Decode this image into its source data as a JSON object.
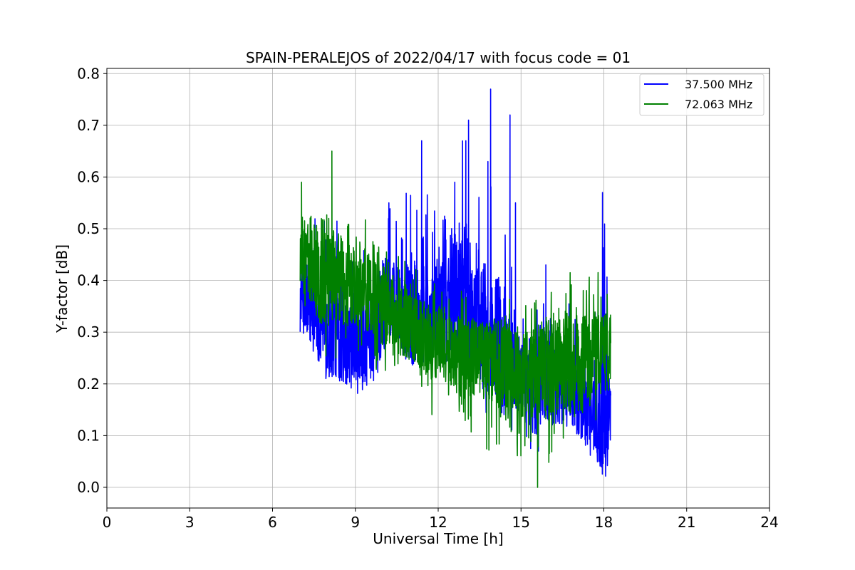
{
  "chart_data": {
    "type": "line",
    "title": "SPAIN-PERALEJOS of 2022/04/17 with focus code = 01",
    "xlabel": "Universal Time [h]",
    "ylabel": "Y-factor [dB]",
    "xlim": [
      0,
      24
    ],
    "ylim": [
      -0.04,
      0.81
    ],
    "xticks": [
      0,
      3,
      6,
      9,
      12,
      15,
      18,
      21,
      24
    ],
    "xtick_labels": [
      "0",
      "3",
      "6",
      "9",
      "12",
      "15",
      "18",
      "21",
      "24"
    ],
    "yticks": [
      0.0,
      0.1,
      0.2,
      0.3,
      0.4,
      0.5,
      0.6,
      0.7,
      0.8
    ],
    "ytick_labels": [
      "0.0",
      "0.1",
      "0.2",
      "0.3",
      "0.4",
      "0.5",
      "0.6",
      "0.7",
      "0.8"
    ],
    "grid": true,
    "legend_position": "top-right",
    "series": [
      {
        "name": "37.500 MHz",
        "color": "#0000ff",
        "x": [
          7.0,
          7.25,
          7.5,
          7.75,
          8.0,
          8.25,
          8.5,
          8.75,
          9.0,
          9.25,
          9.5,
          9.75,
          10.0,
          10.25,
          10.5,
          10.75,
          11.0,
          11.25,
          11.5,
          11.75,
          12.0,
          12.25,
          12.5,
          12.75,
          13.0,
          13.25,
          13.5,
          13.75,
          14.0,
          14.25,
          14.5,
          14.75,
          15.0,
          15.25,
          15.5,
          15.75,
          16.0,
          16.25,
          16.5,
          16.75,
          17.0,
          17.25,
          17.5,
          17.75,
          18.0,
          18.25
        ],
        "mean": [
          0.37,
          0.36,
          0.34,
          0.32,
          0.3,
          0.31,
          0.29,
          0.27,
          0.28,
          0.27,
          0.29,
          0.3,
          0.35,
          0.37,
          0.36,
          0.34,
          0.35,
          0.33,
          0.34,
          0.32,
          0.38,
          0.39,
          0.38,
          0.36,
          0.38,
          0.33,
          0.32,
          0.3,
          0.3,
          0.27,
          0.25,
          0.23,
          0.22,
          0.21,
          0.2,
          0.22,
          0.21,
          0.2,
          0.19,
          0.18,
          0.18,
          0.17,
          0.16,
          0.15,
          0.15,
          0.14
        ],
        "min": [
          0.3,
          0.25,
          0.25,
          0.24,
          0.2,
          0.17,
          0.21,
          0.2,
          0.17,
          0.17,
          0.16,
          0.2,
          0.22,
          0.28,
          0.27,
          0.25,
          0.24,
          0.24,
          0.23,
          0.24,
          0.22,
          0.22,
          0.22,
          0.21,
          0.21,
          0.2,
          0.18,
          0.17,
          0.15,
          0.14,
          0.1,
          0.08,
          0.06,
          0.05,
          0.04,
          0.06,
          0.07,
          0.07,
          0.09,
          0.08,
          0.07,
          0.06,
          0.03,
          0.04,
          0.06,
          0.03
        ],
        "max": [
          0.5,
          0.55,
          0.55,
          0.54,
          0.57,
          0.55,
          0.52,
          0.48,
          0.44,
          0.47,
          0.5,
          0.54,
          0.56,
          0.55,
          0.52,
          0.56,
          0.67,
          0.57,
          0.62,
          0.5,
          0.59,
          0.62,
          0.66,
          0.63,
          0.71,
          0.62,
          0.56,
          0.77,
          0.48,
          0.72,
          0.55,
          0.38,
          0.33,
          0.34,
          0.43,
          0.42,
          0.38,
          0.35,
          0.35,
          0.37,
          0.35,
          0.35,
          0.33,
          0.35,
          0.57,
          0.37
        ],
        "spikes": [
          [
            11.4,
            0.67
          ],
          [
            12.6,
            0.59
          ],
          [
            13.0,
            0.67
          ],
          [
            13.1,
            0.71
          ],
          [
            13.8,
            0.63
          ],
          [
            13.9,
            0.77
          ],
          [
            14.6,
            0.72
          ],
          [
            14.8,
            0.55
          ],
          [
            15.9,
            0.43
          ],
          [
            17.95,
            0.57
          ]
        ]
      },
      {
        "name": "72.063 MHz",
        "color": "#008000",
        "x": [
          7.0,
          7.25,
          7.5,
          7.75,
          8.0,
          8.25,
          8.5,
          8.75,
          9.0,
          9.25,
          9.5,
          9.75,
          10.0,
          10.25,
          10.5,
          10.75,
          11.0,
          11.25,
          11.5,
          11.75,
          12.0,
          12.25,
          12.5,
          12.75,
          13.0,
          13.25,
          13.5,
          13.75,
          14.0,
          14.25,
          14.5,
          14.75,
          15.0,
          15.25,
          15.5,
          15.75,
          16.0,
          16.25,
          16.5,
          16.75,
          17.0,
          17.25,
          17.5,
          17.75,
          18.0,
          18.25
        ],
        "mean": [
          0.45,
          0.44,
          0.43,
          0.42,
          0.42,
          0.41,
          0.4,
          0.39,
          0.38,
          0.37,
          0.37,
          0.36,
          0.35,
          0.34,
          0.33,
          0.32,
          0.31,
          0.3,
          0.29,
          0.28,
          0.28,
          0.27,
          0.27,
          0.26,
          0.26,
          0.25,
          0.25,
          0.24,
          0.24,
          0.24,
          0.23,
          0.23,
          0.22,
          0.22,
          0.22,
          0.23,
          0.23,
          0.23,
          0.24,
          0.24,
          0.25,
          0.25,
          0.25,
          0.26,
          0.26,
          0.26
        ],
        "min": [
          0.32,
          0.28,
          0.24,
          0.2,
          0.24,
          0.25,
          0.24,
          0.25,
          0.24,
          0.23,
          0.22,
          0.22,
          0.21,
          0.2,
          0.2,
          0.19,
          0.17,
          0.16,
          0.15,
          0.14,
          0.14,
          0.13,
          0.12,
          0.11,
          0.1,
          0.09,
          0.08,
          0.07,
          0.06,
          0.06,
          0.05,
          0.05,
          0.05,
          0.05,
          0.04,
          0.02,
          0.03,
          0.05,
          0.08,
          0.1,
          0.11,
          0.12,
          0.12,
          0.12,
          0.13,
          0.13
        ],
        "max": [
          0.59,
          0.58,
          0.57,
          0.58,
          0.65,
          0.57,
          0.56,
          0.55,
          0.54,
          0.53,
          0.52,
          0.5,
          0.49,
          0.48,
          0.46,
          0.44,
          0.43,
          0.42,
          0.41,
          0.4,
          0.39,
          0.38,
          0.39,
          0.38,
          0.38,
          0.37,
          0.36,
          0.38,
          0.37,
          0.39,
          0.38,
          0.36,
          0.36,
          0.37,
          0.36,
          0.38,
          0.39,
          0.4,
          0.41,
          0.42,
          0.42,
          0.42,
          0.41,
          0.42,
          0.41,
          0.4
        ],
        "spikes": [
          [
            7.05,
            0.59
          ],
          [
            8.15,
            0.65
          ],
          [
            15.6,
            0.0
          ]
        ]
      }
    ]
  }
}
